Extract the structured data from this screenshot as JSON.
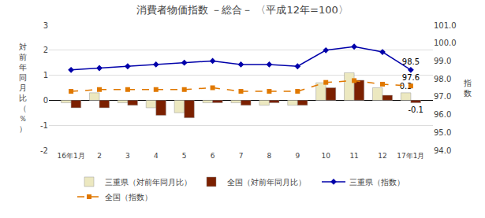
{
  "chart_data": {
    "type": "bar",
    "title": "消費者物価指数 －総合－ 〈平成12年=100〉",
    "categories": [
      "16年1月",
      "2",
      "3",
      "4",
      "5",
      "6",
      "7",
      "8",
      "9",
      "10",
      "11",
      "12",
      "17年1月"
    ],
    "ylabel": "対\n前\n年\n同\n月\n比\n（\n％\n）",
    "y2label": "指\n数",
    "ylim": [
      -2.0,
      3.0
    ],
    "yticks": [
      -2,
      -1,
      0,
      1,
      2,
      3
    ],
    "y2lim": [
      94.0,
      101.0
    ],
    "y2ticks": [
      {
        "value": 94.0,
        "label": "94.0"
      },
      {
        "value": 95.0,
        "label": "95.0"
      },
      {
        "value": 96.0,
        "label": "96.0"
      },
      {
        "value": 97.0,
        "label": "97.0"
      },
      {
        "value": 98.0,
        "label": "98.0"
      },
      {
        "value": 99.0,
        "label": "99.0"
      },
      {
        "value": 100.0,
        "label": "100.0"
      },
      {
        "value": 101.0,
        "label": "101.0"
      }
    ],
    "grid": true,
    "legend": "bottom",
    "series": [
      {
        "name": "三重県（対前年同月比）",
        "type": "bar",
        "axis": "y",
        "color": "#ece8c0",
        "values": [
          -0.1,
          0.3,
          -0.1,
          -0.3,
          -0.5,
          -0.1,
          -0.1,
          -0.2,
          -0.2,
          0.7,
          1.1,
          0.5,
          0.3
        ],
        "value_labels": [
          null,
          null,
          null,
          null,
          null,
          null,
          null,
          null,
          null,
          null,
          null,
          null,
          "0.3"
        ]
      },
      {
        "name": "全国（対前年同月比）",
        "type": "bar",
        "axis": "y",
        "color": "#7b2000",
        "values": [
          -0.3,
          -0.3,
          -0.2,
          -0.6,
          -0.7,
          -0.1,
          -0.2,
          -0.1,
          -0.2,
          0.5,
          0.8,
          0.2,
          -0.1
        ],
        "value_labels": [
          null,
          null,
          null,
          null,
          null,
          null,
          null,
          null,
          null,
          null,
          null,
          null,
          "-0.1"
        ]
      },
      {
        "name": "三重県（指数）",
        "type": "line",
        "axis": "y2",
        "color": "#0000aa",
        "marker": "diamond",
        "line_style": "solid",
        "values": [
          98.5,
          98.6,
          98.7,
          98.8,
          98.9,
          99.0,
          98.8,
          98.8,
          98.7,
          99.6,
          99.8,
          99.5,
          98.5
        ],
        "value_labels": [
          null,
          null,
          null,
          null,
          null,
          null,
          null,
          null,
          null,
          null,
          null,
          null,
          "98.5"
        ]
      },
      {
        "name": "全国（指数）",
        "type": "line",
        "axis": "y2",
        "color": "#e07800",
        "marker": "square",
        "line_style": "dash",
        "values": [
          97.3,
          97.4,
          97.4,
          97.4,
          97.4,
          97.5,
          97.3,
          97.3,
          97.3,
          97.8,
          97.9,
          97.7,
          97.6
        ],
        "value_labels": [
          null,
          null,
          null,
          null,
          null,
          null,
          null,
          null,
          null,
          null,
          null,
          null,
          "97.6"
        ]
      }
    ]
  }
}
